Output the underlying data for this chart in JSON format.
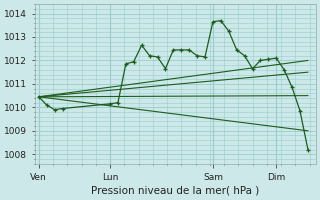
{
  "background_color": "#cce8e8",
  "grid_color": "#99cccc",
  "line_color": "#1e5c1e",
  "title": "Pression niveau de la mer( hPa )",
  "ylim": [
    1007.6,
    1014.4
  ],
  "yticks": [
    1008,
    1009,
    1010,
    1011,
    1012,
    1013,
    1014
  ],
  "day_labels": [
    "Ven",
    "Lun",
    "Sam",
    "Dim"
  ],
  "day_positions": [
    0,
    9,
    22,
    30
  ],
  "xlim": [
    -0.5,
    35
  ],
  "line1_x": [
    0,
    1,
    2,
    3,
    9,
    10,
    11,
    12,
    13,
    14,
    15,
    16,
    17,
    18,
    19,
    20,
    21,
    22,
    23,
    24,
    25,
    26,
    27,
    28,
    29,
    30,
    31,
    32,
    33,
    34
  ],
  "line1_y": [
    1010.45,
    1010.1,
    1009.9,
    1009.95,
    1010.15,
    1010.2,
    1011.85,
    1011.95,
    1012.65,
    1012.2,
    1012.15,
    1011.65,
    1012.45,
    1012.45,
    1012.45,
    1012.2,
    1012.15,
    1013.65,
    1013.7,
    1013.25,
    1012.45,
    1012.2,
    1011.65,
    1012.0,
    1012.05,
    1012.1,
    1011.6,
    1010.85,
    1009.85,
    1008.2
  ],
  "line2_x": [
    0,
    34
  ],
  "line2_y": [
    1010.45,
    1009.0
  ],
  "line3_x": [
    0,
    34
  ],
  "line3_y": [
    1010.45,
    1010.5
  ],
  "line4_x": [
    0,
    34
  ],
  "line4_y": [
    1010.45,
    1011.5
  ],
  "line5_x": [
    0,
    34
  ],
  "line5_y": [
    1010.45,
    1012.0
  ]
}
